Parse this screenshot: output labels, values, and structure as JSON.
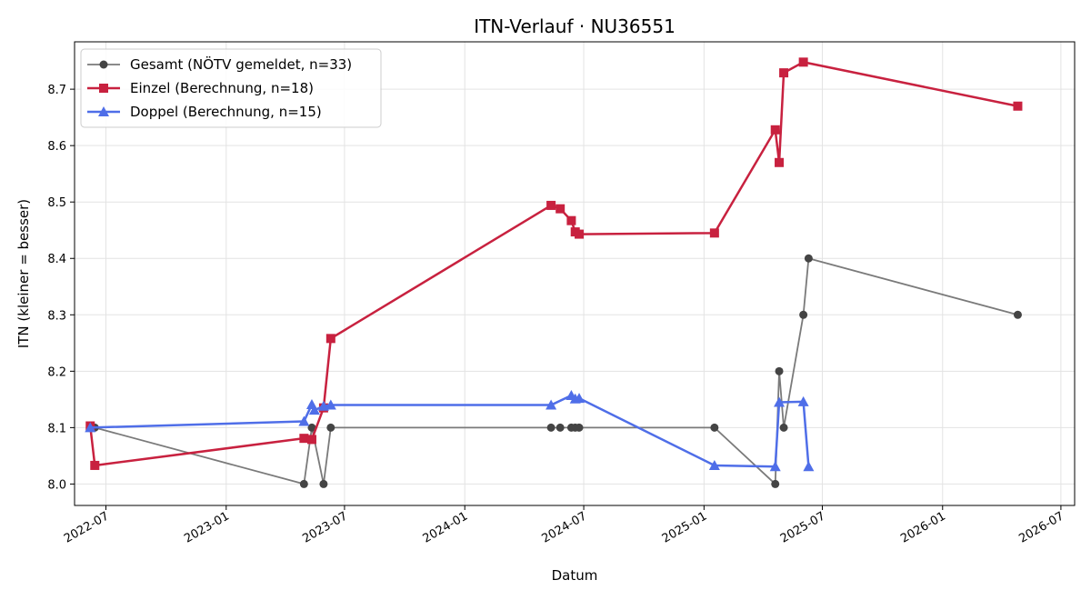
{
  "chart_data": {
    "type": "line",
    "title": "ITN-Verlauf · NU36551",
    "xlabel": "Datum",
    "ylabel": "ITN  (kleiner = besser)",
    "x_type": "date",
    "xlim": [
      "2022-05-14",
      "2026-07-22"
    ],
    "ylim": [
      7.962,
      8.784
    ],
    "x_ticks": [
      "2022-07-01",
      "2023-01-01",
      "2023-07-01",
      "2024-01-01",
      "2024-07-01",
      "2025-01-01",
      "2025-07-01",
      "2026-01-01",
      "2026-07-01"
    ],
    "x_tick_labels": [
      "2022-07",
      "2023-01",
      "2023-07",
      "2024-01",
      "2024-07",
      "2025-01",
      "2025-07",
      "2026-01",
      "2026-07"
    ],
    "y_ticks": [
      8.0,
      8.1,
      8.2,
      8.3,
      8.4,
      8.5,
      8.6,
      8.7
    ],
    "y_tick_labels": [
      "8.0",
      "8.1",
      "8.2",
      "8.3",
      "8.4",
      "8.5",
      "8.6",
      "8.7"
    ],
    "grid": true,
    "legend_position": "top-left",
    "series": [
      {
        "name": "Gesamt (NÖTV gemeldet, n=33)",
        "color": "#7a7a7a",
        "marker_color": "#444444",
        "marker": "circle",
        "points": [
          {
            "x": "2022-06-14",
            "y": 8.1
          },
          {
            "x": "2023-04-30",
            "y": 8.0
          },
          {
            "x": "2023-05-12",
            "y": 8.1
          },
          {
            "x": "2023-05-30",
            "y": 8.0
          },
          {
            "x": "2023-06-10",
            "y": 8.1
          },
          {
            "x": "2024-05-12",
            "y": 8.1
          },
          {
            "x": "2024-05-26",
            "y": 8.1
          },
          {
            "x": "2024-06-12",
            "y": 8.1
          },
          {
            "x": "2024-06-18",
            "y": 8.1
          },
          {
            "x": "2024-06-24",
            "y": 8.1
          },
          {
            "x": "2025-01-17",
            "y": 8.1
          },
          {
            "x": "2025-04-20",
            "y": 8.0
          },
          {
            "x": "2025-04-26",
            "y": 8.2
          },
          {
            "x": "2025-05-03",
            "y": 8.1
          },
          {
            "x": "2025-06-02",
            "y": 8.3
          },
          {
            "x": "2025-06-10",
            "y": 8.4
          },
          {
            "x": "2026-04-26",
            "y": 8.3
          }
        ]
      },
      {
        "name": "Einzel (Berechnung, n=18)",
        "color": "#c8213f",
        "marker_color": "#c8213f",
        "marker": "square",
        "points": [
          {
            "x": "2022-06-07",
            "y": 8.103
          },
          {
            "x": "2022-06-14",
            "y": 8.033
          },
          {
            "x": "2023-04-30",
            "y": 8.081
          },
          {
            "x": "2023-05-12",
            "y": 8.079
          },
          {
            "x": "2023-05-30",
            "y": 8.135
          },
          {
            "x": "2023-06-10",
            "y": 8.258
          },
          {
            "x": "2024-05-12",
            "y": 8.494
          },
          {
            "x": "2024-05-26",
            "y": 8.488
          },
          {
            "x": "2024-06-12",
            "y": 8.467
          },
          {
            "x": "2024-06-18",
            "y": 8.447
          },
          {
            "x": "2024-06-24",
            "y": 8.443
          },
          {
            "x": "2025-01-17",
            "y": 8.445
          },
          {
            "x": "2025-04-20",
            "y": 8.628
          },
          {
            "x": "2025-04-26",
            "y": 8.57
          },
          {
            "x": "2025-05-03",
            "y": 8.729
          },
          {
            "x": "2025-06-02",
            "y": 8.748
          },
          {
            "x": "2026-04-26",
            "y": 8.67
          }
        ]
      },
      {
        "name": "Doppel (Berechnung, n=15)",
        "color": "#4f6ee8",
        "marker_color": "#4f6ee8",
        "marker": "triangle",
        "points": [
          {
            "x": "2022-06-07",
            "y": 8.1
          },
          {
            "x": "2023-04-30",
            "y": 8.111
          },
          {
            "x": "2023-05-12",
            "y": 8.141
          },
          {
            "x": "2023-05-16",
            "y": 8.131
          },
          {
            "x": "2023-05-30",
            "y": 8.138
          },
          {
            "x": "2023-06-10",
            "y": 8.14
          },
          {
            "x": "2024-05-12",
            "y": 8.14
          },
          {
            "x": "2024-06-12",
            "y": 8.157
          },
          {
            "x": "2024-06-18",
            "y": 8.151
          },
          {
            "x": "2024-06-24",
            "y": 8.152
          },
          {
            "x": "2025-01-17",
            "y": 8.033
          },
          {
            "x": "2025-04-20",
            "y": 8.031
          },
          {
            "x": "2025-04-26",
            "y": 8.145
          },
          {
            "x": "2025-06-02",
            "y": 8.146
          },
          {
            "x": "2025-06-10",
            "y": 8.031
          }
        ]
      }
    ]
  }
}
